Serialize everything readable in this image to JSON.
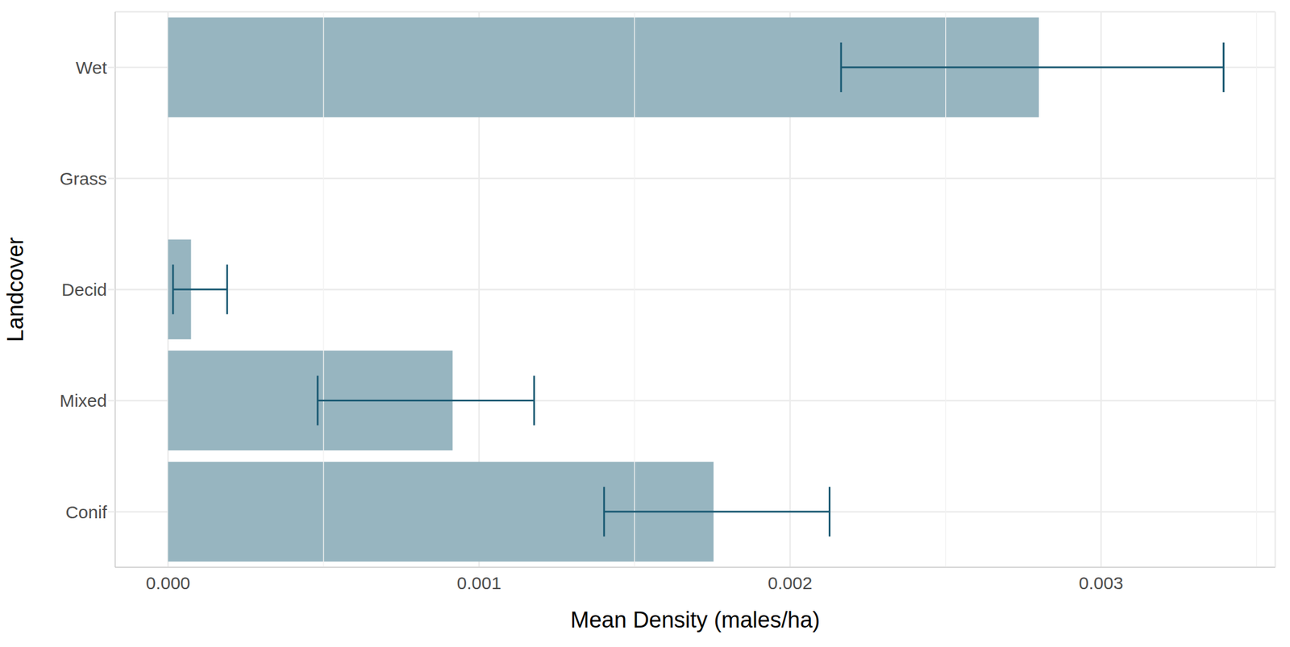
{
  "chart_data": {
    "type": "bar",
    "orientation": "horizontal",
    "x_label": "Mean Density (males/ha)",
    "y_label": "Landcover",
    "categories": [
      "Wet",
      "Grass",
      "Decid",
      "Mixed",
      "Conif"
    ],
    "values": [
      0.0028,
      0,
      7.4e-05,
      0.000915,
      0.001754
    ],
    "error_lower": [
      0.002164,
      0,
      1.6e-05,
      0.000481,
      0.001402
    ],
    "error_upper": [
      0.003394,
      0,
      0.00019,
      0.001177,
      0.002127
    ],
    "color": "#97b5c0",
    "xlim": [
      -0.00017,
      0.00356
    ],
    "xticks": [
      {
        "value": 0,
        "label": "0.000"
      },
      0.001,
      0.002,
      0.003
    ],
    "grid": true
  }
}
